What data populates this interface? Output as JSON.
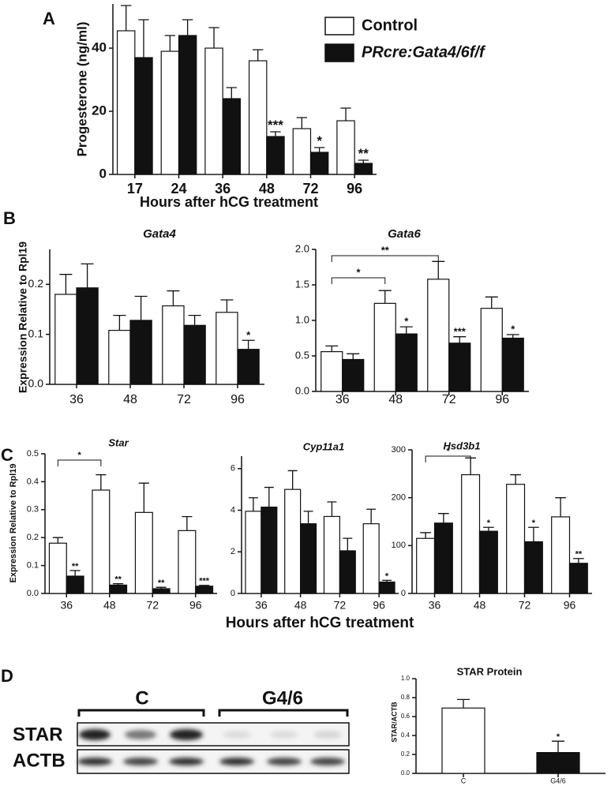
{
  "panel_labels": [
    "A",
    "B",
    "C",
    "D"
  ],
  "panel_C_xlabel": "Hours after hCG treatment",
  "blot": {
    "groups": [
      "C",
      "G4/6"
    ],
    "rows": [
      "STAR",
      "ACTB"
    ]
  },
  "chart_data": [
    {
      "type": "bar",
      "xlabel": "Hours after hCG treatment",
      "ylabel": "Progesterone (ng/ml)",
      "categories": [
        "17",
        "24",
        "36",
        "48",
        "72",
        "96"
      ],
      "ylim": [
        0,
        54
      ],
      "yticks": [
        0,
        20,
        40
      ],
      "legend": true,
      "series": [
        {
          "name": "Control",
          "color": "#ffffff",
          "values": [
            45.5,
            39,
            40,
            36,
            14.5,
            17
          ],
          "errors": [
            8,
            5,
            6.5,
            3.5,
            3.5,
            4
          ],
          "significance": [
            null,
            null,
            null,
            null,
            null,
            null
          ]
        },
        {
          "name": "PRcre:Gata4/6f/f",
          "color": "#111111",
          "values": [
            37,
            44,
            24,
            12,
            7,
            3.5
          ],
          "errors": [
            12,
            5,
            3.5,
            1.5,
            1.5,
            1
          ],
          "significance": [
            null,
            null,
            null,
            "***",
            "*",
            "**"
          ]
        }
      ]
    },
    {
      "type": "bar",
      "title": "Gata4",
      "ylabel": "Expression Relative to Rpl19",
      "categories": [
        "36",
        "48",
        "72",
        "96"
      ],
      "ylim": [
        0,
        0.27
      ],
      "yticks": [
        {
          "value": 0,
          "label": "0.0"
        },
        0.1,
        0.2
      ],
      "series": [
        {
          "color": "#ffffff",
          "values": [
            0.18,
            0.108,
            0.157,
            0.144
          ],
          "errors": [
            0.04,
            0.03,
            0.03,
            0.025
          ],
          "significance": [
            null,
            null,
            null,
            null
          ]
        },
        {
          "color": "#111111",
          "values": [
            0.193,
            0.128,
            0.118,
            0.07
          ],
          "errors": [
            0.048,
            0.048,
            0.02,
            0.018
          ],
          "significance": [
            null,
            null,
            null,
            "*"
          ]
        }
      ]
    },
    {
      "type": "bar",
      "title": "Gata6",
      "categories": [
        "36",
        "48",
        "72",
        "96"
      ],
      "ylim": [
        0,
        2
      ],
      "yticks": [
        {
          "value": 0,
          "label": "0.0"
        },
        0.5,
        {
          "value": 1,
          "label": "1.0"
        },
        1.5,
        {
          "value": 2,
          "label": "2.0"
        }
      ],
      "brackets": [
        {
          "from": "36",
          "to": "48",
          "label": "*"
        },
        {
          "from": "36",
          "to": "72",
          "label": "**"
        }
      ],
      "series": [
        {
          "color": "#ffffff",
          "values": [
            0.56,
            1.24,
            1.58,
            1.17
          ],
          "errors": [
            0.08,
            0.18,
            0.25,
            0.16
          ],
          "significance": [
            null,
            null,
            null,
            null
          ]
        },
        {
          "color": "#111111",
          "values": [
            0.45,
            0.81,
            0.68,
            0.75
          ],
          "errors": [
            0.08,
            0.1,
            0.09,
            0.05
          ],
          "significance": [
            null,
            "*",
            "***",
            "*"
          ]
        }
      ]
    },
    {
      "type": "bar",
      "title": "Star",
      "ylabel": "Expression Relative to Rpl19",
      "categories": [
        "36",
        "48",
        "72",
        "96"
      ],
      "ylim": [
        0,
        0.5
      ],
      "yticks": [
        {
          "value": 0,
          "label": "0.0"
        },
        0.1,
        0.2,
        0.3,
        0.4,
        0.5
      ],
      "brackets": [
        {
          "from": "36",
          "to": "48",
          "label": "*"
        }
      ],
      "series": [
        {
          "color": "#ffffff",
          "values": [
            0.18,
            0.37,
            0.29,
            0.225
          ],
          "errors": [
            0.02,
            0.055,
            0.105,
            0.05
          ],
          "significance": [
            null,
            null,
            null,
            null
          ]
        },
        {
          "color": "#111111",
          "values": [
            0.062,
            0.03,
            0.017,
            0.026
          ],
          "errors": [
            0.02,
            0.005,
            0.005,
            0.003
          ],
          "significance": [
            "**",
            "**",
            "**",
            "***"
          ]
        }
      ]
    },
    {
      "type": "bar",
      "title": "Cyp11a1",
      "categories": [
        "36",
        "48",
        "72",
        "96"
      ],
      "ylim": [
        0,
        6.6
      ],
      "yticks": [
        0,
        2,
        4,
        6
      ],
      "series": [
        {
          "color": "#ffffff",
          "values": [
            3.95,
            5.0,
            3.7,
            3.35
          ],
          "errors": [
            0.65,
            0.9,
            0.7,
            0.7
          ],
          "significance": [
            null,
            null,
            null,
            null
          ]
        },
        {
          "color": "#111111",
          "values": [
            4.15,
            3.35,
            2.05,
            0.55
          ],
          "errors": [
            0.95,
            0.6,
            0.6,
            0.08
          ],
          "significance": [
            null,
            null,
            null,
            "*"
          ]
        }
      ]
    },
    {
      "type": "bar",
      "title": "Hsd3b1",
      "categories": [
        "36",
        "48",
        "72",
        "96"
      ],
      "ylim": [
        0,
        300
      ],
      "yticks": [
        0,
        100,
        200,
        300
      ],
      "brackets": [
        {
          "from": "36",
          "to": "48",
          "label": "*"
        }
      ],
      "series": [
        {
          "color": "#ffffff",
          "values": [
            115,
            248,
            228,
            160
          ],
          "errors": [
            12,
            35,
            20,
            40
          ],
          "significance": [
            null,
            null,
            null,
            null
          ]
        },
        {
          "color": "#111111",
          "values": [
            147,
            130,
            108,
            63
          ],
          "errors": [
            20,
            8,
            30,
            10
          ],
          "significance": [
            null,
            "*",
            "*",
            "**"
          ]
        }
      ]
    },
    {
      "type": "bar",
      "title": "STAR Protein",
      "ylabel": "STAR/ACTB",
      "categories": [
        "C",
        "G4/6"
      ],
      "ylim": [
        0,
        1
      ],
      "yticks": [
        {
          "value": 0,
          "label": "0.0"
        },
        {
          "value": 0.2,
          "label": "0.2"
        },
        {
          "value": 0.4,
          "label": "0.4"
        },
        {
          "value": 0.6,
          "label": "0.6"
        },
        {
          "value": 0.8,
          "label": "0.8"
        },
        {
          "value": 1,
          "label": "1.0"
        }
      ],
      "series": [
        {
          "colors": [
            "#ffffff",
            "#111111"
          ],
          "values": [
            0.69,
            0.22
          ],
          "errors": [
            0.09,
            0.12
          ],
          "significance": [
            null,
            "*"
          ]
        }
      ]
    }
  ]
}
